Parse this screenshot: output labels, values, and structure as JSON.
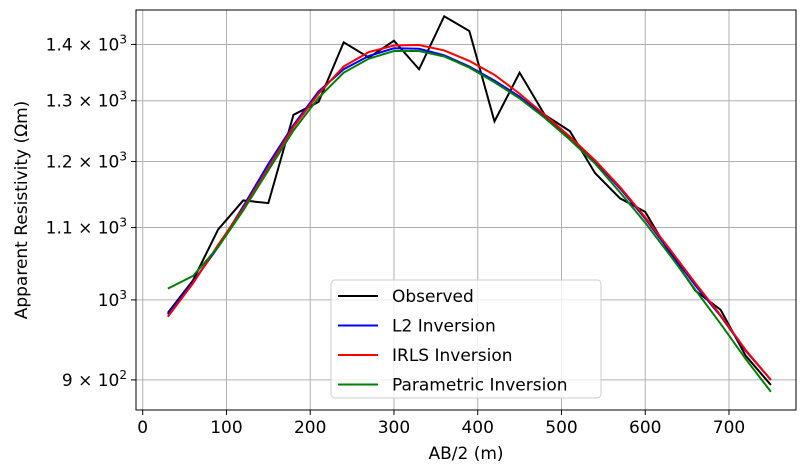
{
  "chart_data": {
    "type": "line",
    "title": "",
    "xlabel": "AB/2 (m)",
    "ylabel": "Apparent Resistivity (Ωm)",
    "xlim": [
      -8,
      780
    ],
    "ylim": [
      865,
      1465
    ],
    "yscale": "log",
    "grid": true,
    "legend_position": "bottom-center",
    "x_ticks": [
      "0",
      "100",
      "200",
      "300",
      "400",
      "500",
      "600",
      "700"
    ],
    "x_tick_values": [
      0,
      100,
      200,
      300,
      400,
      500,
      600,
      700
    ],
    "y_ticks": [
      {
        "value": 900,
        "base": "9 × 10",
        "exp": "2"
      },
      {
        "value": 1000,
        "base": "10",
        "exp": "3"
      },
      {
        "value": 1100,
        "base": "1.1 × 10",
        "exp": "3"
      },
      {
        "value": 1200,
        "base": "1.2 × 10",
        "exp": "3"
      },
      {
        "value": 1300,
        "base": "1.3 × 10",
        "exp": "3"
      },
      {
        "value": 1400,
        "base": "1.4 × 10",
        "exp": "3"
      }
    ],
    "x": [
      30,
      60,
      90,
      120,
      150,
      180,
      210,
      240,
      270,
      300,
      330,
      360,
      390,
      420,
      450,
      480,
      510,
      540,
      570,
      600,
      630,
      660,
      690,
      720,
      750
    ],
    "series": [
      {
        "name": "Observed",
        "color": "#000000",
        "values": [
          983,
          1026,
          1097,
          1140,
          1136,
          1276,
          1298,
          1404,
          1376,
          1407,
          1355,
          1453,
          1425,
          1265,
          1349,
          1276,
          1249,
          1182,
          1143,
          1123,
          1062,
          1012,
          987,
          929,
          894
        ]
      },
      {
        "name": "L2 Inversion",
        "color": "#0000ff",
        "values": [
          981,
          1024,
          1072,
          1131,
          1196,
          1259,
          1316,
          1355,
          1379,
          1393,
          1392,
          1380,
          1360,
          1335,
          1307,
          1273,
          1237,
          1200,
          1158,
          1113,
          1065,
          1019,
          979,
          935,
          900
        ]
      },
      {
        "name": "IRLS Inversion",
        "color": "#ff0000",
        "values": [
          978,
          1022,
          1075,
          1128,
          1190,
          1256,
          1312,
          1360,
          1386,
          1398,
          1399,
          1389,
          1370,
          1345,
          1312,
          1276,
          1240,
          1202,
          1160,
          1115,
          1068,
          1022,
          980,
          936,
          900
        ]
      },
      {
        "name": "Parametric Inversion",
        "color": "#008000",
        "values": [
          1015,
          1032,
          1072,
          1125,
          1186,
          1250,
          1305,
          1349,
          1374,
          1388,
          1388,
          1378,
          1358,
          1332,
          1304,
          1271,
          1235,
          1197,
          1152,
          1107,
          1060,
          1013,
          969,
          925,
          886
        ]
      }
    ]
  }
}
